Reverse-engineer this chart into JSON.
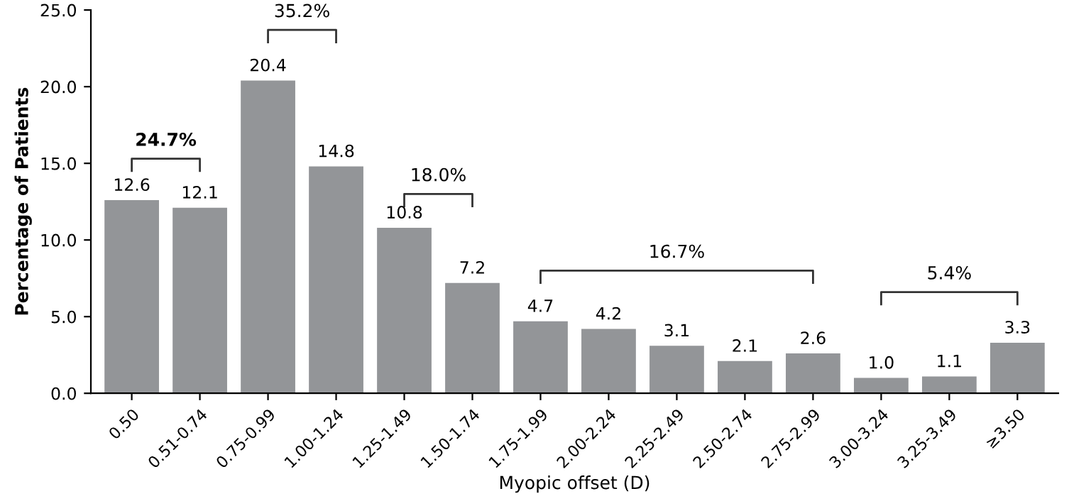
{
  "chart_data": {
    "type": "bar",
    "xlabel": "Myopic offset (D)",
    "ylabel": "Percentage of Patients",
    "categories": [
      "0.50",
      "0.51-0.74",
      "0.75-0.99",
      "1.00-1.24",
      "1.25-1.49",
      "1.50-1.74",
      "1.75-1.99",
      "2.00-2.24",
      "2.25-2.49",
      "2.50-2.74",
      "2.75-2.99",
      "3.00-3.24",
      "3.25-3.49",
      "≥3.50"
    ],
    "values": [
      12.6,
      12.1,
      20.4,
      14.8,
      10.8,
      7.2,
      4.7,
      4.2,
      3.1,
      2.1,
      2.6,
      1.0,
      1.1,
      3.3
    ],
    "color": "#939598",
    "ylim": [
      0,
      25
    ],
    "yticks": [
      {
        "value": 0,
        "label": "0.0"
      },
      {
        "value": 5,
        "label": "5.0"
      },
      {
        "value": 10,
        "label": "10.0"
      },
      {
        "value": 15,
        "label": "15.0"
      },
      {
        "value": 20,
        "label": "20.0"
      },
      {
        "value": 25,
        "label": "25.0"
      }
    ],
    "value_labels": [
      "12.6",
      "12.1",
      "20.4",
      "14.8",
      "10.8",
      "7.2",
      "4.7",
      "4.2",
      "3.1",
      "2.1",
      "2.6",
      "1.0",
      "1.1",
      "3.3"
    ],
    "grid": false,
    "legend": false,
    "annotations": [
      "24.7%",
      "35.2%",
      "18.0%",
      "16.7%",
      "5.4%"
    ]
  }
}
